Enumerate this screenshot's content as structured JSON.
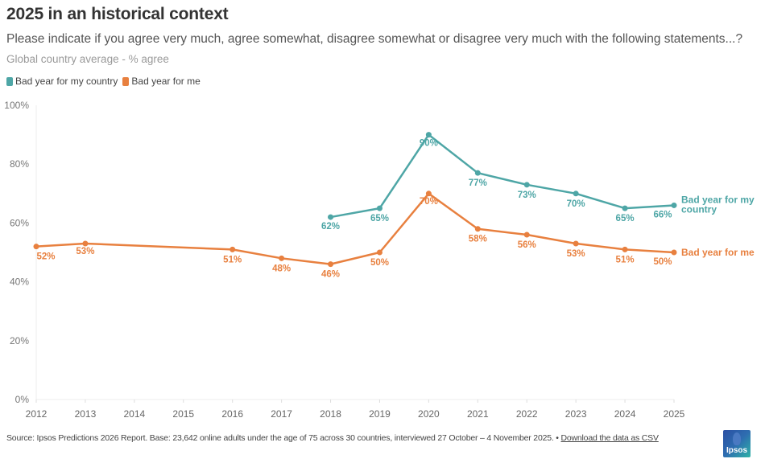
{
  "header": {
    "title": "2025 in an historical context",
    "subtitle": "Please indicate if you agree very much, agree somewhat, disagree somewhat or disagree very much with the following statements...?",
    "description": "Global country average - % agree"
  },
  "legend": [
    {
      "label": "Bad year for my country",
      "color": "#4ea6a6"
    },
    {
      "label": "Bad year for me",
      "color": "#e8803f"
    }
  ],
  "chart_data": {
    "type": "line",
    "title": "2025 in an historical context",
    "xlabel": "",
    "ylabel": "",
    "x": [
      2012,
      2013,
      2014,
      2015,
      2016,
      2017,
      2018,
      2019,
      2020,
      2021,
      2022,
      2023,
      2024,
      2025
    ],
    "x_tick_labels": [
      "2012",
      "2013",
      "2014",
      "2015",
      "2016",
      "2017",
      "2018",
      "2019",
      "2020",
      "2021",
      "2022",
      "2023",
      "2024",
      "2025"
    ],
    "ylim": [
      0,
      100
    ],
    "y_ticks": [
      0,
      20,
      40,
      60,
      80,
      100
    ],
    "y_tick_labels": [
      "0%",
      "20%",
      "40%",
      "60%",
      "80%",
      "100%"
    ],
    "grid": false,
    "legend_position": "top-left",
    "series": [
      {
        "name": "Bad year for my country",
        "end_label": [
          "Bad year for my",
          "country"
        ],
        "color": "#4ea6a6",
        "points": [
          {
            "x": 2018,
            "y": 62,
            "label": "62%"
          },
          {
            "x": 2019,
            "y": 65,
            "label": "65%"
          },
          {
            "x": 2020,
            "y": 90,
            "label": "90%"
          },
          {
            "x": 2021,
            "y": 77,
            "label": "77%"
          },
          {
            "x": 2022,
            "y": 73,
            "label": "73%"
          },
          {
            "x": 2023,
            "y": 70,
            "label": "70%"
          },
          {
            "x": 2024,
            "y": 65,
            "label": "65%"
          },
          {
            "x": 2025,
            "y": 66,
            "label": "66%"
          }
        ]
      },
      {
        "name": "Bad year for me",
        "end_label": [
          "Bad year for me"
        ],
        "color": "#e8803f",
        "points": [
          {
            "x": 2012,
            "y": 52,
            "label": "52%"
          },
          {
            "x": 2013,
            "y": 53,
            "label": "53%"
          },
          {
            "x": 2016,
            "y": 51,
            "label": "51%"
          },
          {
            "x": 2017,
            "y": 48,
            "label": "48%"
          },
          {
            "x": 2018,
            "y": 46,
            "label": "46%"
          },
          {
            "x": 2019,
            "y": 50,
            "label": "50%"
          },
          {
            "x": 2020,
            "y": 70,
            "label": "70%"
          },
          {
            "x": 2021,
            "y": 58,
            "label": "58%"
          },
          {
            "x": 2022,
            "y": 56,
            "label": "56%"
          },
          {
            "x": 2023,
            "y": 53,
            "label": "53%"
          },
          {
            "x": 2024,
            "y": 51,
            "label": "51%"
          },
          {
            "x": 2025,
            "y": 50,
            "label": "50%"
          }
        ]
      }
    ]
  },
  "footer": {
    "source": "Source: Ipsos Predictions 2026 Report. Base: 23,642 online adults under the age of 75 across 30 countries, interviewed 27 October – 4 November 2025. • ",
    "download_link": "Download the data as CSV"
  },
  "logo": {
    "label": "Ipsos"
  }
}
